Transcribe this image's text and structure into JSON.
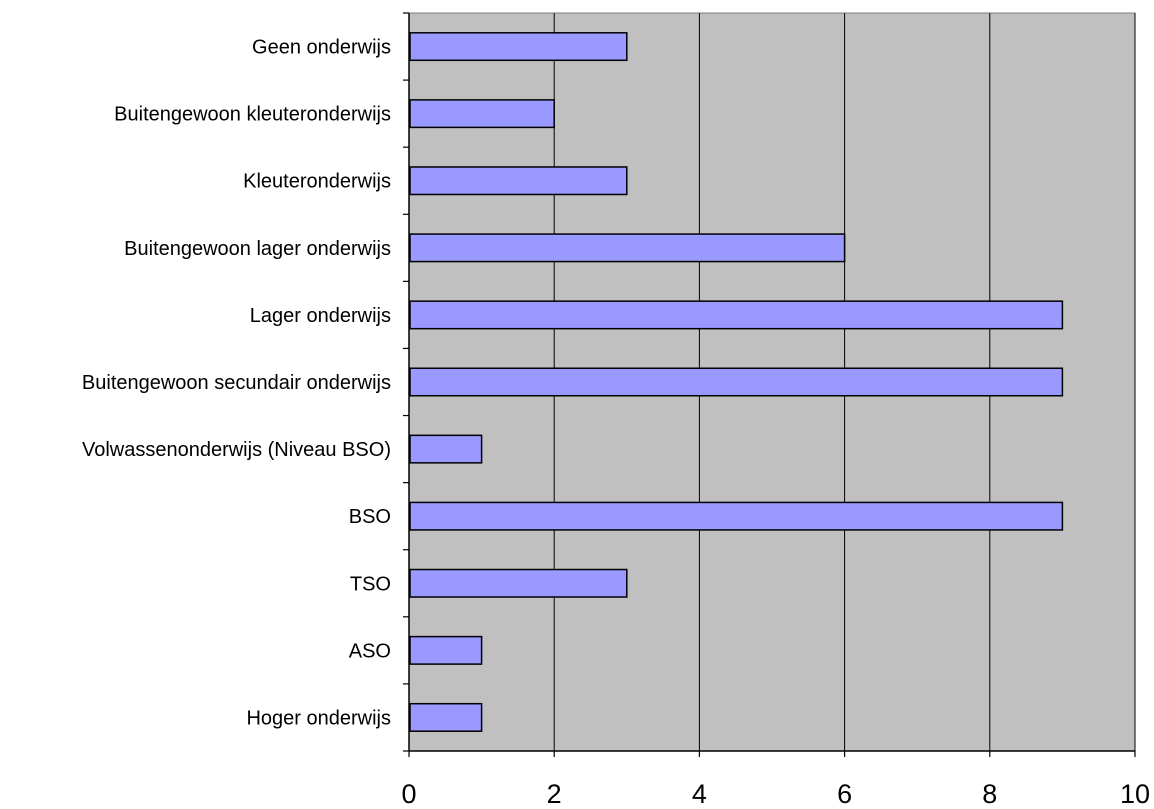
{
  "chart_data": {
    "type": "bar",
    "orientation": "horizontal",
    "title": "",
    "xlabel": "",
    "ylabel": "",
    "categories": [
      "Geen onderwijs",
      "Buitengewoon kleuteronderwijs",
      "Kleuteronderwijs",
      "Buitengewoon lager onderwijs",
      "Lager onderwijs",
      "Buitengewoon secundair onderwijs",
      "Volwassenonderwijs (Niveau BSO)",
      "BSO",
      "TSO",
      "ASO",
      "Hoger onderwijs"
    ],
    "values": [
      3,
      2,
      3,
      6,
      9,
      9,
      1,
      9,
      3,
      1,
      1
    ],
    "xlim": [
      0,
      10
    ],
    "xticks": [
      "0",
      "2",
      "4",
      "6",
      "8",
      "10"
    ],
    "grid": true,
    "legend": "none",
    "colors": {
      "plot_background": "#c0c0c0",
      "bar_fill": "#9999ff",
      "bar_stroke": "#000000",
      "gridline": "#000000"
    }
  }
}
